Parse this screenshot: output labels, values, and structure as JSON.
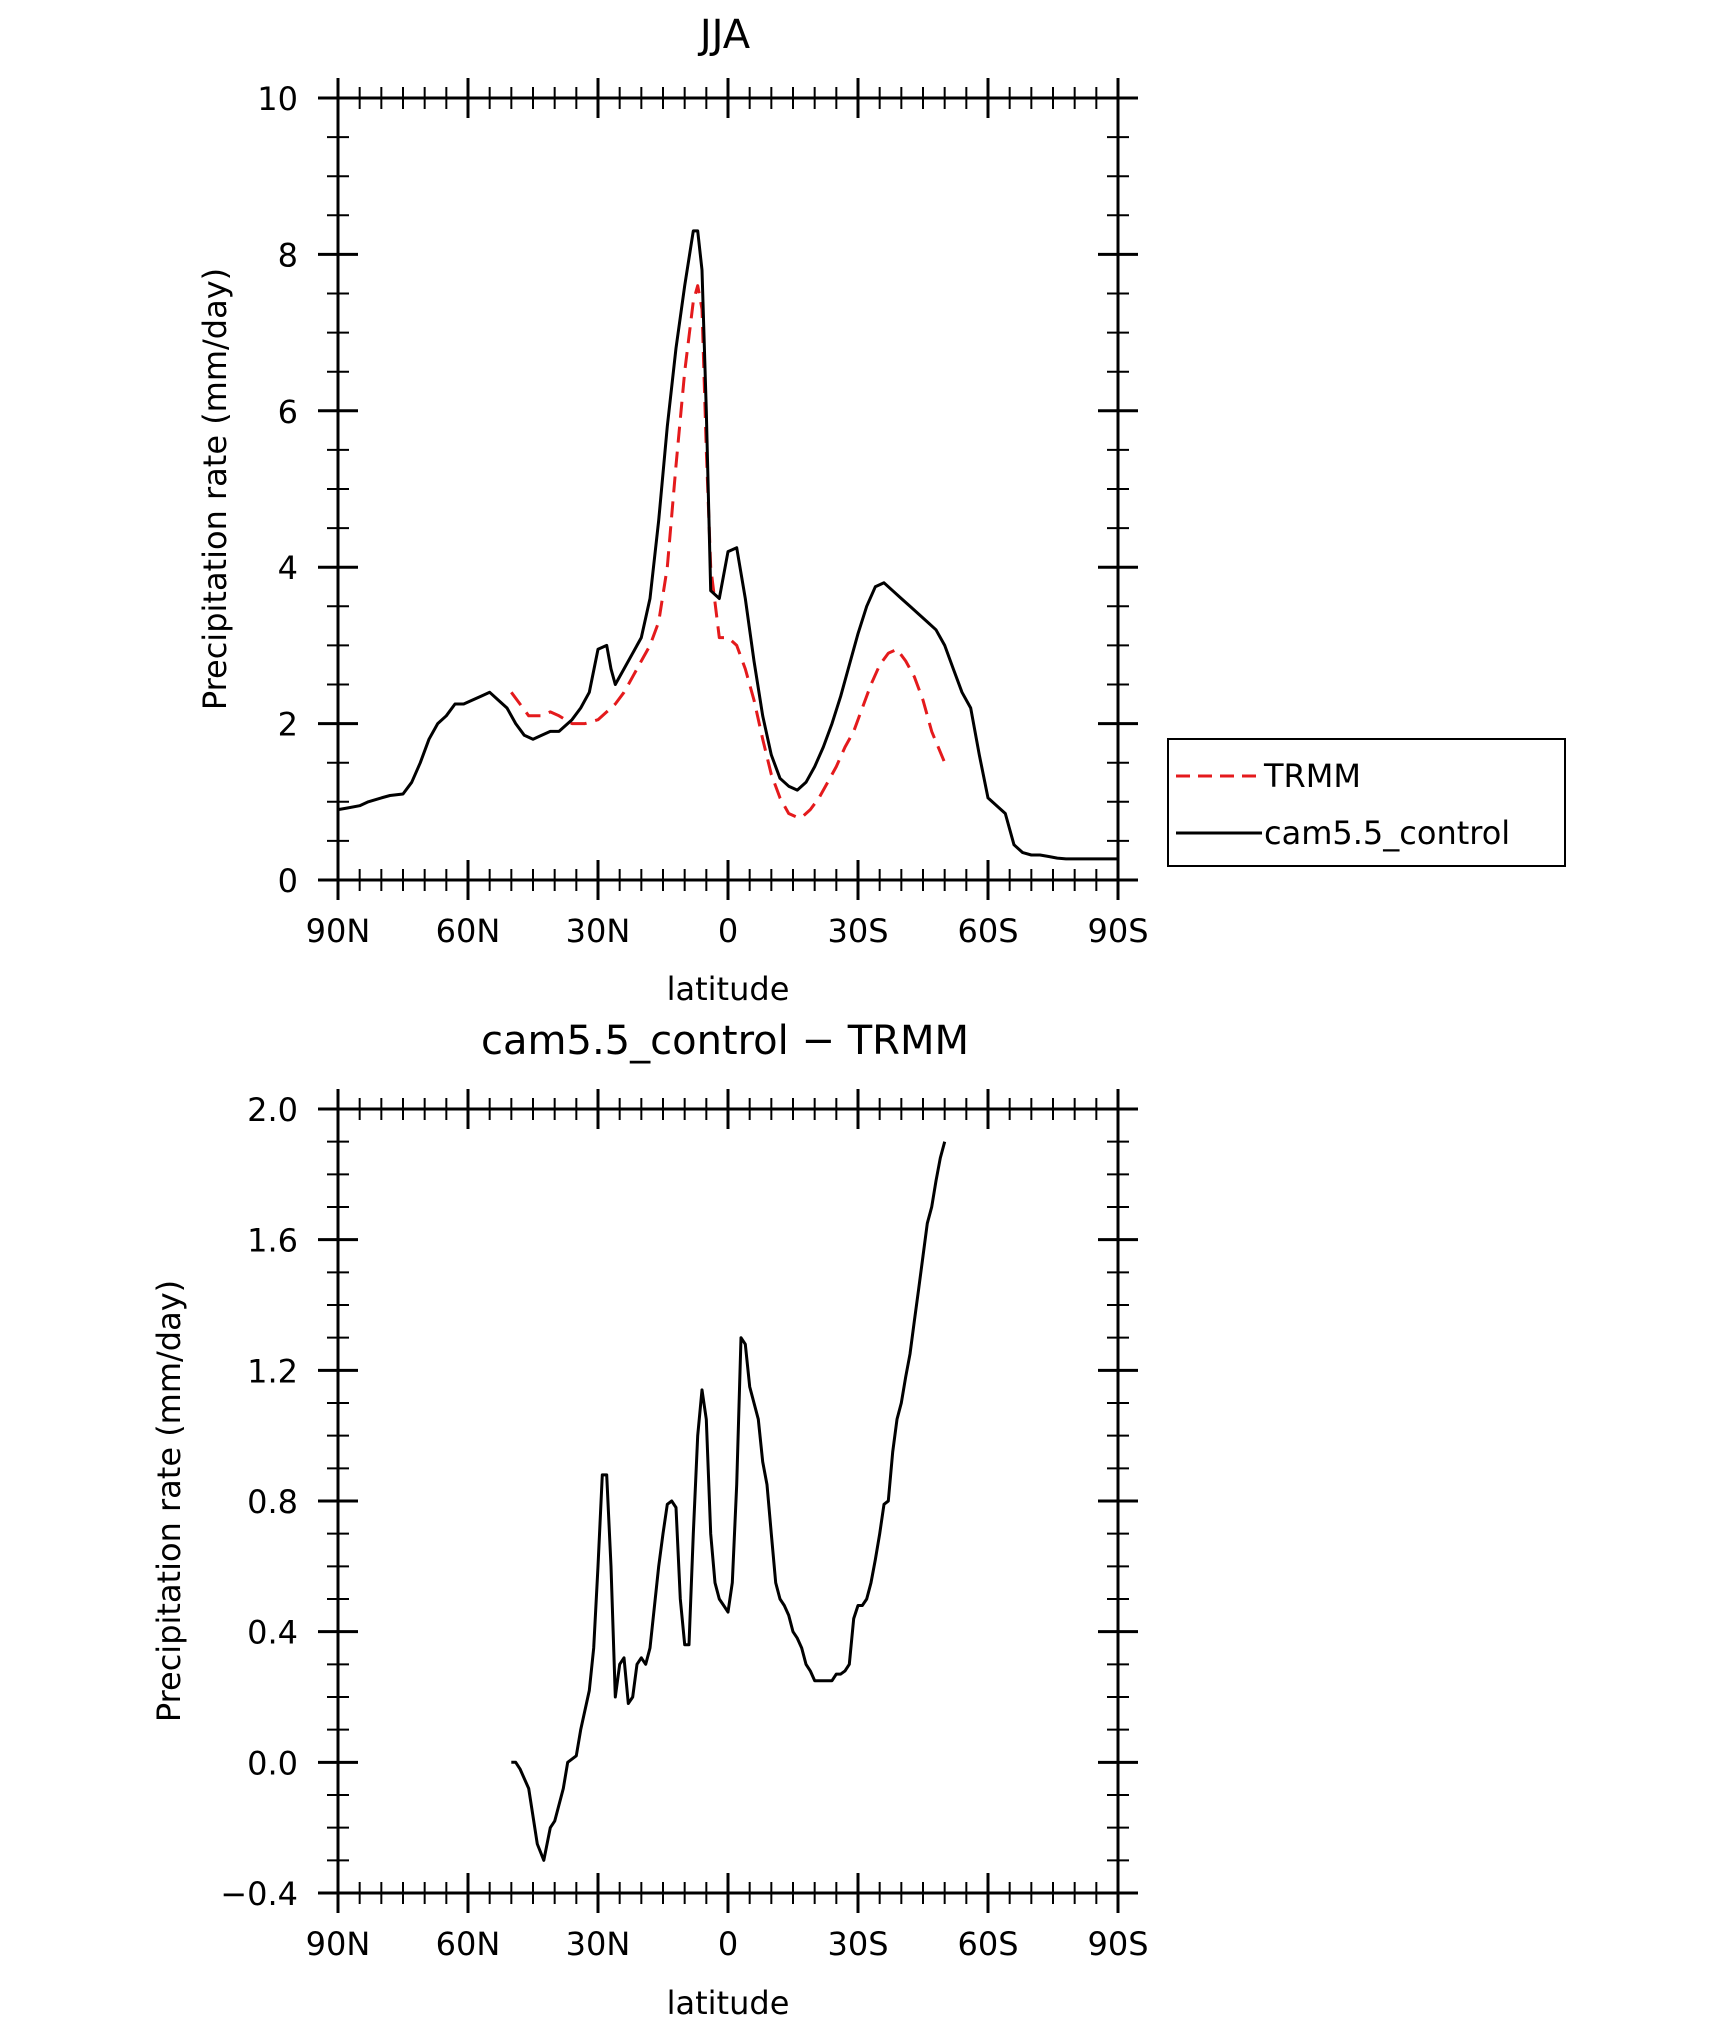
{
  "chart_data": [
    {
      "type": "line",
      "title": "JJA",
      "xlabel": "latitude",
      "ylabel": "Precipitation rate (mm/day)",
      "xlim": [
        90,
        -90
      ],
      "ylim": [
        0,
        10
      ],
      "xticks": [
        {
          "value": 90,
          "label": "90N"
        },
        {
          "value": 60,
          "label": "60N"
        },
        {
          "value": 30,
          "label": "30N"
        },
        {
          "value": 0,
          "label": "0"
        },
        {
          "value": -30,
          "label": "30S"
        },
        {
          "value": -60,
          "label": "60S"
        },
        {
          "value": -90,
          "label": "90S"
        }
      ],
      "yticks": [
        {
          "value": 0,
          "label": "0"
        },
        {
          "value": 2,
          "label": "2"
        },
        {
          "value": 4,
          "label": "4"
        },
        {
          "value": 6,
          "label": "6"
        },
        {
          "value": 8,
          "label": "8"
        },
        {
          "value": 10,
          "label": "10"
        }
      ],
      "legend_position": "right",
      "series": [
        {
          "name": "TRMM",
          "color": "#e41a1c",
          "dash": true,
          "x": [
            50,
            46,
            43,
            41,
            39,
            36,
            33,
            30,
            28,
            26,
            24,
            22,
            20,
            18,
            16,
            14,
            12,
            10,
            8,
            7,
            6,
            5,
            4,
            2,
            0,
            -2,
            -4,
            -6,
            -8,
            -10,
            -12,
            -14,
            -16,
            -17,
            -19,
            -21,
            -23,
            -25,
            -27,
            -29,
            -31,
            -33,
            -35,
            -37,
            -39,
            -41,
            -43,
            -45,
            -47,
            -50
          ],
          "y": [
            2.4,
            2.1,
            2.1,
            2.15,
            2.1,
            2.0,
            2.0,
            2.05,
            2.15,
            2.25,
            2.4,
            2.6,
            2.8,
            3.0,
            3.3,
            4.0,
            5.3,
            6.5,
            7.4,
            7.6,
            7.3,
            5.5,
            4.0,
            3.1,
            3.1,
            3.0,
            2.7,
            2.3,
            1.8,
            1.35,
            1.05,
            0.85,
            0.8,
            0.8,
            0.9,
            1.05,
            1.25,
            1.45,
            1.7,
            1.9,
            2.2,
            2.5,
            2.75,
            2.9,
            2.95,
            2.8,
            2.6,
            2.3,
            1.9,
            1.5
          ]
        },
        {
          "name": "cam5.5_control",
          "color": "#000000",
          "dash": false,
          "x": [
            90,
            88,
            85,
            83,
            80,
            78,
            75,
            73,
            71,
            69,
            67,
            65,
            63,
            61,
            59,
            57,
            55,
            53,
            51,
            49,
            47,
            45,
            43,
            41,
            39,
            36,
            34,
            32,
            30,
            28,
            27,
            26,
            24,
            22,
            20,
            18,
            16,
            14,
            12,
            10,
            8,
            7,
            6,
            5,
            4,
            2,
            0,
            -2,
            -4,
            -6,
            -8,
            -10,
            -12,
            -14,
            -16,
            -18,
            -20,
            -22,
            -24,
            -26,
            -28,
            -30,
            -32,
            -34,
            -36,
            -38,
            -40,
            -42,
            -44,
            -46,
            -48,
            -50,
            -52,
            -54,
            -56,
            -58,
            -60,
            -62,
            -64,
            -66,
            -68,
            -70,
            -72,
            -74,
            -76,
            -78,
            -80,
            -82,
            -84,
            -86,
            -88,
            -90
          ],
          "y": [
            0.9,
            0.92,
            0.95,
            1.0,
            1.05,
            1.08,
            1.1,
            1.25,
            1.5,
            1.8,
            2.0,
            2.1,
            2.25,
            2.25,
            2.3,
            2.35,
            2.4,
            2.3,
            2.2,
            2.0,
            1.85,
            1.8,
            1.85,
            1.9,
            1.9,
            2.05,
            2.2,
            2.4,
            2.95,
            3.0,
            2.7,
            2.5,
            2.7,
            2.9,
            3.1,
            3.6,
            4.6,
            5.8,
            6.8,
            7.6,
            8.3,
            8.3,
            7.8,
            6.0,
            3.7,
            3.6,
            4.2,
            4.25,
            3.6,
            2.8,
            2.1,
            1.6,
            1.3,
            1.2,
            1.15,
            1.25,
            1.45,
            1.7,
            2.0,
            2.35,
            2.75,
            3.15,
            3.5,
            3.75,
            3.8,
            3.7,
            3.6,
            3.5,
            3.4,
            3.3,
            3.2,
            3.0,
            2.7,
            2.4,
            2.2,
            1.6,
            1.05,
            0.95,
            0.85,
            0.45,
            0.35,
            0.32,
            0.32,
            0.3,
            0.28,
            0.27,
            0.27,
            0.27,
            0.27,
            0.27,
            0.27,
            0.27
          ]
        }
      ]
    },
    {
      "type": "line",
      "title": "cam5.5_control − TRMM",
      "xlabel": "latitude",
      "ylabel": "Precipitation rate (mm/day)",
      "xlim": [
        90,
        -90
      ],
      "ylim": [
        -0.4,
        2.0
      ],
      "xticks": [
        {
          "value": 90,
          "label": "90N"
        },
        {
          "value": 60,
          "label": "60N"
        },
        {
          "value": 30,
          "label": "30N"
        },
        {
          "value": 0,
          "label": "0"
        },
        {
          "value": -30,
          "label": "30S"
        },
        {
          "value": -60,
          "label": "60S"
        },
        {
          "value": -90,
          "label": "90S"
        }
      ],
      "yticks": [
        {
          "value": -0.4,
          "label": "−0.4"
        },
        {
          "value": 0.0,
          "label": "0.0"
        },
        {
          "value": 0.4,
          "label": "0.4"
        },
        {
          "value": 0.8,
          "label": "0.8"
        },
        {
          "value": 1.2,
          "label": "1.2"
        },
        {
          "value": 1.6,
          "label": "1.6"
        },
        {
          "value": 2.0,
          "label": "2.0"
        }
      ],
      "series": [
        {
          "name": "cam5.5_control − TRMM",
          "color": "#000000",
          "dash": false,
          "x": [
            50,
            49,
            48,
            46,
            44,
            42.5,
            41,
            40,
            38,
            37,
            35,
            34,
            32,
            31,
            30,
            29,
            28,
            27,
            26,
            25,
            24,
            23,
            22,
            21,
            20,
            19,
            18,
            16,
            15,
            14,
            13,
            12,
            11,
            10,
            9,
            8,
            7,
            6,
            5,
            4,
            3,
            2,
            1,
            0,
            -1,
            -2,
            -3,
            -4,
            -5,
            -6,
            -7,
            -8,
            -9,
            -10,
            -11,
            -12,
            -13,
            -14,
            -15,
            -16,
            -17,
            -18,
            -19,
            -20,
            -21,
            -22,
            -23,
            -24,
            -25,
            -26,
            -27,
            -28,
            -29,
            -30,
            -31,
            -32,
            -33,
            -34,
            -35,
            -36,
            -37,
            -38,
            -39,
            -40,
            -41,
            -42,
            -43,
            -44,
            -45,
            -46,
            -47,
            -48,
            -49,
            -50
          ],
          "y": [
            0.0,
            0.0,
            -0.02,
            -0.08,
            -0.25,
            -0.3,
            -0.2,
            -0.18,
            -0.08,
            0.0,
            0.02,
            0.1,
            0.22,
            0.35,
            0.6,
            0.88,
            0.88,
            0.6,
            0.2,
            0.3,
            0.32,
            0.18,
            0.2,
            0.3,
            0.32,
            0.3,
            0.35,
            0.6,
            0.7,
            0.79,
            0.8,
            0.78,
            0.5,
            0.36,
            0.36,
            0.7,
            1.0,
            1.14,
            1.05,
            0.7,
            0.55,
            0.5,
            0.48,
            0.46,
            0.55,
            0.85,
            1.3,
            1.28,
            1.15,
            1.1,
            1.05,
            0.92,
            0.85,
            0.7,
            0.55,
            0.5,
            0.48,
            0.45,
            0.4,
            0.38,
            0.35,
            0.3,
            0.28,
            0.25,
            0.25,
            0.25,
            0.25,
            0.25,
            0.27,
            0.27,
            0.28,
            0.3,
            0.44,
            0.48,
            0.48,
            0.5,
            0.55,
            0.62,
            0.7,
            0.79,
            0.8,
            0.95,
            1.05,
            1.1,
            1.18,
            1.25,
            1.35,
            1.45,
            1.55,
            1.65,
            1.7,
            1.78,
            1.85,
            1.9
          ]
        }
      ]
    }
  ]
}
